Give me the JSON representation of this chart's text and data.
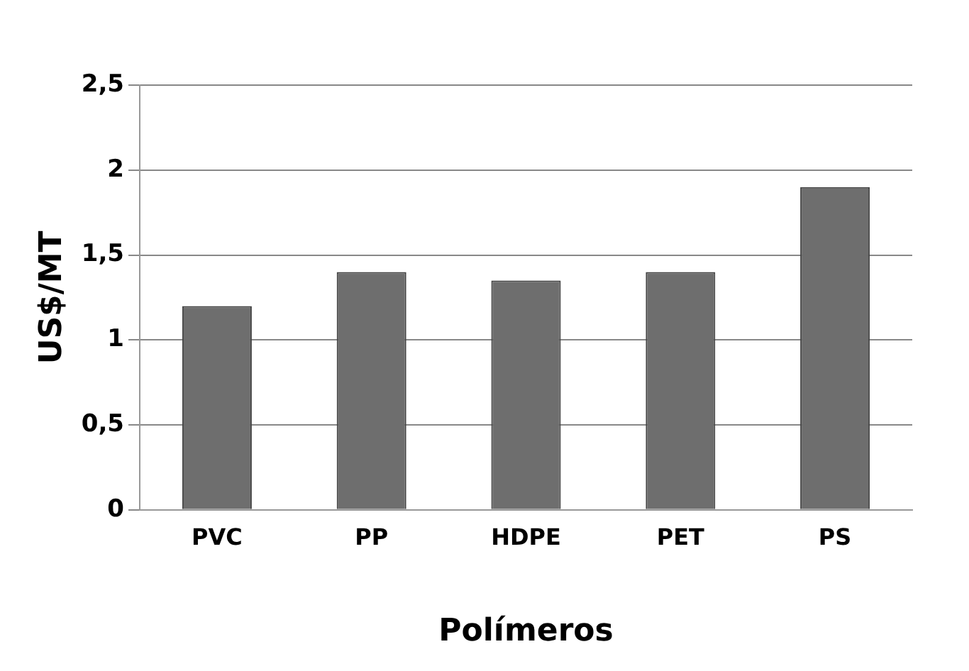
{
  "chart_data": {
    "type": "bar",
    "xlabel": "Polímeros",
    "ylabel": "US$/MT",
    "categories": [
      "PVC",
      "PP",
      "HDPE",
      "PET",
      "PS"
    ],
    "values": [
      1.2,
      1.4,
      1.35,
      1.4,
      1.9
    ],
    "color": "#6e6e6e",
    "ylim": [
      0,
      2.5
    ],
    "yticks": [
      0,
      {
        "value": 0.5,
        "label": "0,5"
      },
      1,
      {
        "value": 1.5,
        "label": "1,5"
      },
      2,
      {
        "value": 2.5,
        "label": "2,5"
      }
    ],
    "grid": "y",
    "legend": false
  }
}
